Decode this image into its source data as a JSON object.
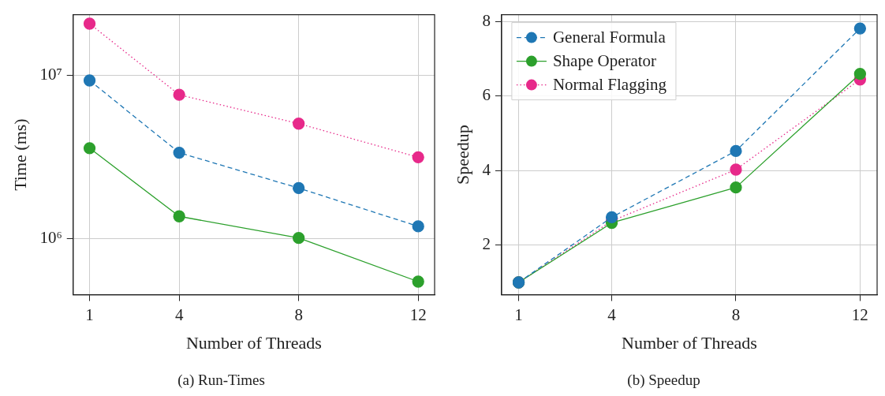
{
  "chart_data": [
    {
      "type": "line",
      "title": "(a) Run-Times",
      "xlabel": "Number of Threads",
      "ylabel": "Time (ms)",
      "x": [
        1,
        4,
        8,
        12
      ],
      "xlim": [
        0.45,
        12.55
      ],
      "xticks": [
        1,
        4,
        8,
        12
      ],
      "ylim": [
        454000,
        23500000
      ],
      "yticks": [
        {
          "value": 1000000,
          "label": "10⁶"
        },
        {
          "value": 10000000,
          "label": "10⁷"
        }
      ],
      "log": "y",
      "grid": true,
      "marker": "circle",
      "series": [
        {
          "color": "#1f77b4",
          "line_style": "dashed",
          "values": [
            9300000,
            3360000,
            2040000,
            1190000
          ]
        },
        {
          "color": "#2ca02c",
          "line_style": "solid",
          "values": [
            3580000,
            1370000,
            1010000,
            546000
          ]
        },
        {
          "color": "#e7298a",
          "line_style": "dotted",
          "values": [
            20700000,
            7600000,
            5060000,
            3150000
          ]
        }
      ]
    },
    {
      "type": "line",
      "title": "(b) Speedup",
      "xlabel": "Number of Threads",
      "ylabel": "Speedup",
      "x": [
        1,
        4,
        8,
        12
      ],
      "xlim": [
        0.45,
        12.55
      ],
      "xticks": [
        1,
        4,
        8,
        12
      ],
      "ylim": [
        0.67,
        8.19
      ],
      "yticks": [
        2,
        4,
        6,
        8
      ],
      "grid": true,
      "marker": "circle",
      "legend": "top left",
      "series": [
        {
          "name": "General Formula",
          "color": "#1f77b4",
          "line_style": "dashed",
          "values": [
            1,
            2.75,
            4.53,
            7.82
          ]
        },
        {
          "name": "Shape Operator",
          "color": "#2ca02c",
          "line_style": "solid",
          "values": [
            1,
            2.6,
            3.55,
            6.6
          ]
        },
        {
          "name": "Normal Flagging",
          "color": "#e7298a",
          "line_style": "dotted",
          "values": [
            1,
            2.65,
            4.03,
            6.45
          ]
        }
      ]
    }
  ]
}
